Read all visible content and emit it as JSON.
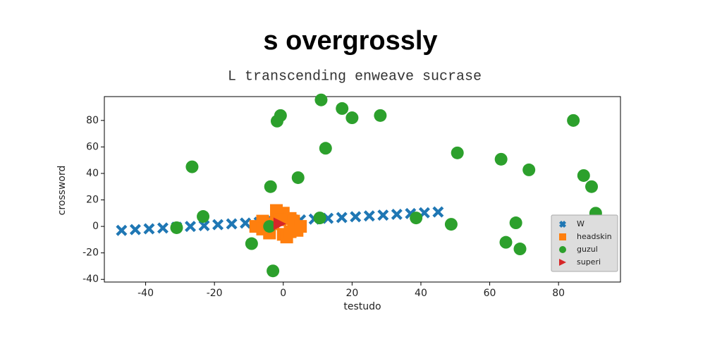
{
  "chart_data": {
    "type": "scatter",
    "title": "s overgrossly",
    "subtitle": "L transcending enweave sucrase",
    "x_label": "testudo",
    "y_label": "crossword",
    "xlim": [
      -52,
      98
    ],
    "ylim": [
      -42,
      98
    ],
    "xticks": [
      -40,
      -20,
      0,
      20,
      40,
      60,
      80
    ],
    "yticks": [
      -40,
      -20,
      0,
      20,
      40,
      60,
      80
    ],
    "legend_position": "lower right",
    "series": [
      {
        "name": "W",
        "color": "#1f77b4",
        "marker": "x",
        "x": [
          -47,
          -43,
          -39,
          -35,
          -31,
          -27,
          -23,
          -19,
          -15,
          -11,
          -7,
          -3,
          1,
          5,
          9,
          13,
          17,
          21,
          25,
          29,
          33,
          37,
          41,
          45
        ],
        "values": [
          -3,
          -2.4,
          -1.8,
          -1.2,
          -0.6,
          0,
          0.6,
          1.3,
          1.9,
          2.5,
          3.1,
          3.7,
          4.3,
          4.9,
          5.5,
          6.1,
          6.7,
          7.3,
          7.9,
          8.5,
          9.1,
          9.7,
          10.3,
          10.9
        ]
      },
      {
        "name": "headskin",
        "color": "#ff7f0e",
        "marker": "square",
        "x": [
          -8,
          -6,
          -4,
          -2,
          0,
          2,
          4,
          -6,
          -3,
          0,
          3,
          5,
          -2,
          1,
          -1,
          2
        ],
        "values": [
          0,
          4,
          -5,
          8,
          10,
          6,
          -3,
          -2,
          2,
          -6,
          4,
          0,
          12,
          -8,
          5,
          -4
        ]
      },
      {
        "name": "guzul",
        "color": "#2ca02c",
        "marker": "circle",
        "x": [
          -31,
          -26.5,
          -23.3,
          -9.2,
          -3,
          -3.7,
          -1.8,
          -0.8,
          -4,
          4.3,
          11,
          12.3,
          10.6,
          17.1,
          20,
          28.2,
          38.6,
          48.8,
          50.6,
          63.3,
          64.7,
          67.6,
          68.8,
          71.4,
          84.3,
          87.3,
          89.6,
          90.8
        ],
        "values": [
          -1,
          45,
          7.5,
          -13,
          -33.6,
          30,
          79.5,
          83.7,
          0,
          36.8,
          95.5,
          59,
          6.4,
          89,
          82,
          83.7,
          6.4,
          1.6,
          55.5,
          50.7,
          -12,
          2.7,
          -17,
          42.7,
          80,
          38.4,
          30,
          10
        ]
      },
      {
        "name": "superi",
        "color": "#d62728",
        "marker": "triangle",
        "x": [
          -1
        ],
        "values": [
          2
        ]
      }
    ]
  }
}
